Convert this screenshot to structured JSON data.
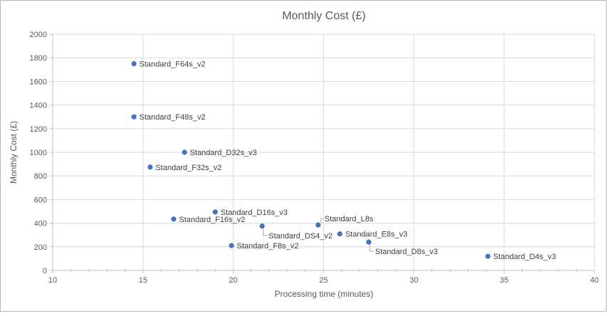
{
  "chart_data": {
    "type": "scatter",
    "title": "Monthly Cost (£)",
    "xlabel": "Processing time (minutes)",
    "ylabel": "Monthly Cost (£)",
    "xlim": [
      10,
      40
    ],
    "ylim": [
      0,
      2000
    ],
    "x_major_tick": 5,
    "x_minor_tick": 1,
    "y_major_tick": 200,
    "grid": true,
    "legend": false,
    "marker_color": "#4472C4",
    "gridline_color": "#D9D9D9",
    "axis_color": "#BFBFBF",
    "leader_color": "#A6A6A6",
    "points": [
      {
        "label": "Standard_F64s_v2",
        "x": 14.5,
        "y": 1750,
        "label_position": "right"
      },
      {
        "label": "Standard_F48s_v2",
        "x": 14.5,
        "y": 1300,
        "label_position": "right"
      },
      {
        "label": "Standard_D32s_v3",
        "x": 17.3,
        "y": 1000,
        "label_position": "right"
      },
      {
        "label": "Standard_F32s_v2",
        "x": 15.4,
        "y": 875,
        "label_position": "right"
      },
      {
        "label": "Standard_D16s_v3",
        "x": 19.0,
        "y": 495,
        "label_position": "right"
      },
      {
        "label": "Standard_F16s_v2",
        "x": 16.7,
        "y": 435,
        "label_position": "right"
      },
      {
        "label": "Standard_L8s",
        "x": 24.7,
        "y": 385,
        "label_position": "above"
      },
      {
        "label": "Standard_DS4_v2",
        "x": 21.6,
        "y": 375,
        "label_position": "below"
      },
      {
        "label": "Standard_E8s_v3",
        "x": 25.9,
        "y": 310,
        "label_position": "right"
      },
      {
        "label": "Standard_F8s_v2",
        "x": 19.9,
        "y": 210,
        "label_position": "right"
      },
      {
        "label": "Standard_D8s_v3",
        "x": 27.5,
        "y": 240,
        "label_position": "below"
      },
      {
        "label": "Standard_D4s_v3",
        "x": 34.1,
        "y": 120,
        "label_position": "right"
      }
    ]
  }
}
